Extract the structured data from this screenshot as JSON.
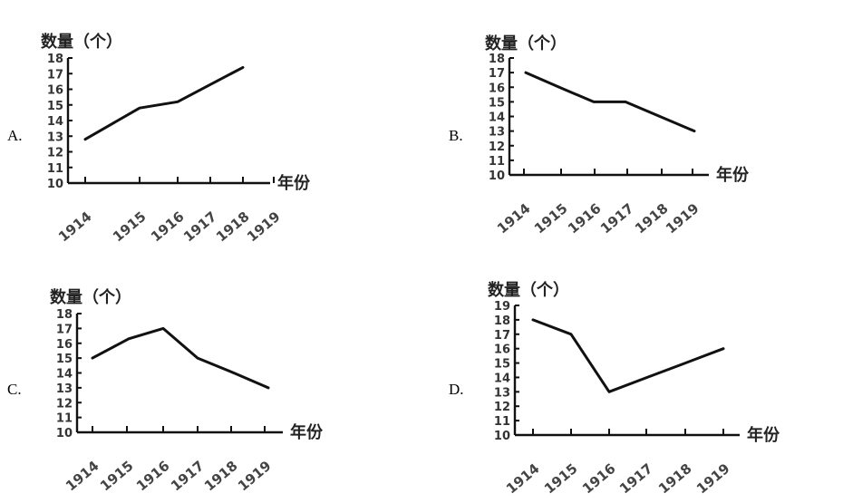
{
  "chart_data": [
    {
      "type": "line",
      "option": "A.",
      "ylabel": "数量（个）",
      "xlabel": "年份",
      "categories": [
        "1914",
        "1915",
        "1916",
        "1917",
        "1918",
        "1919"
      ],
      "y_ticks": [
        "10",
        "11",
        "12",
        "13",
        "14",
        "15",
        "16",
        "17",
        "18"
      ],
      "ylim": [
        10,
        18
      ],
      "x": [
        1914,
        1915,
        1916,
        1917,
        1918,
        1919
      ],
      "values": [
        12.8,
        13.8,
        14.8,
        15.2,
        16.3,
        17.4
      ]
    },
    {
      "type": "line",
      "option": "B.",
      "ylabel": "数量（个）",
      "xlabel": "年份",
      "categories": [
        "1914",
        "1915",
        "1916",
        "1917",
        "1918",
        "1919"
      ],
      "y_ticks": [
        "10",
        "11",
        "12",
        "13",
        "14",
        "15",
        "16",
        "17",
        "18"
      ],
      "ylim": [
        10,
        18
      ],
      "x": [
        1914,
        1915,
        1916,
        1917,
        1918,
        1919
      ],
      "values": [
        17,
        16,
        15,
        15,
        14,
        13
      ]
    },
    {
      "type": "line",
      "option": "C.",
      "ylabel": "数量（个）",
      "xlabel": "年份",
      "categories": [
        "1914",
        "1915",
        "1916",
        "1917",
        "1918",
        "1919"
      ],
      "y_ticks": [
        "10",
        "11",
        "12",
        "13",
        "14",
        "15",
        "16",
        "17",
        "18"
      ],
      "ylim": [
        10,
        18
      ],
      "x": [
        1914,
        1915,
        1916,
        1917,
        1918,
        1919
      ],
      "values": [
        15,
        16.3,
        17,
        15,
        14,
        13
      ]
    },
    {
      "type": "line",
      "option": "D.",
      "ylabel": "数量（个）",
      "xlabel": "年份",
      "categories": [
        "1914",
        "1915",
        "1916",
        "1917",
        "1918",
        "1919"
      ],
      "y_ticks": [
        "10",
        "11",
        "12",
        "13",
        "14",
        "15",
        "16",
        "17",
        "18",
        "19"
      ],
      "ylim": [
        10,
        19
      ],
      "x": [
        1914,
        1915,
        1916,
        1917,
        1918,
        1919
      ],
      "values": [
        18,
        17,
        13,
        14,
        15,
        16
      ]
    }
  ]
}
